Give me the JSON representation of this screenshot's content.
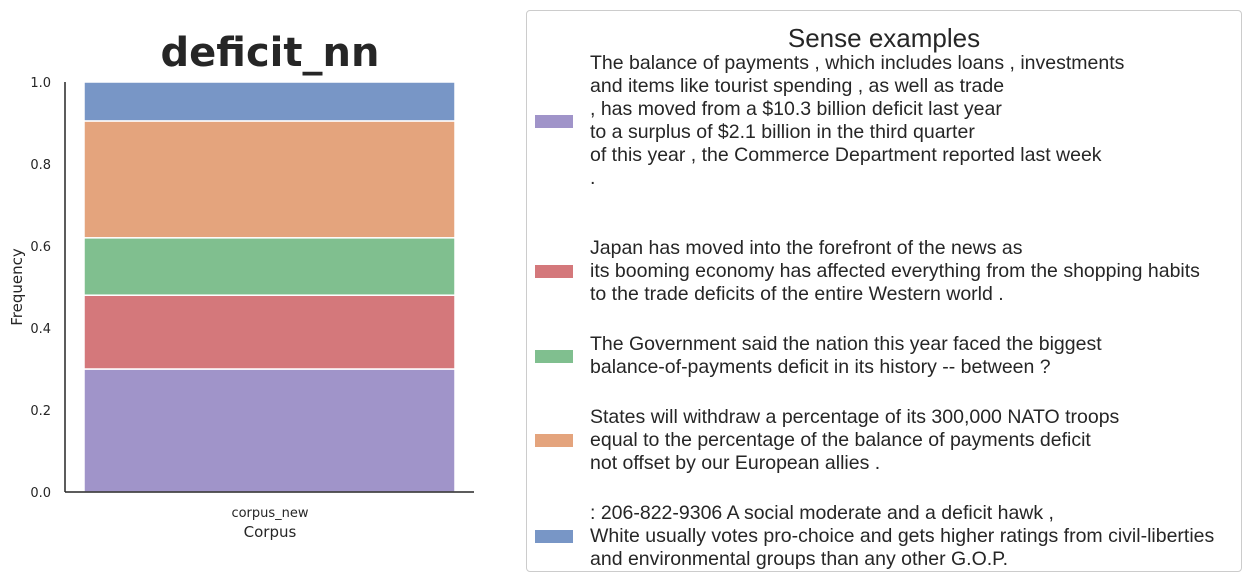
{
  "chart_data": {
    "type": "bar",
    "stacked": true,
    "title": "deficit_nn",
    "xlabel": "Corpus",
    "ylabel": "Frequency",
    "categories": [
      "corpus_new"
    ],
    "ylim": [
      0,
      1.0
    ],
    "yticks": [
      "0.0",
      "0.2",
      "0.4",
      "0.6",
      "0.8",
      "1.0"
    ],
    "series": [
      {
        "color": "#a094c9",
        "values": [
          0.3
        ]
      },
      {
        "color": "#d4787b",
        "values": [
          0.18
        ]
      },
      {
        "color": "#80bf8f",
        "values": [
          0.14
        ]
      },
      {
        "color": "#e4a47d",
        "values": [
          0.285
        ]
      },
      {
        "color": "#7896c6",
        "values": [
          0.095
        ]
      }
    ],
    "legend": {
      "title": "Sense examples",
      "placement": "right",
      "entries": [
        {
          "color": "#a094c9",
          "lines": [
            "The balance of payments , which includes loans , investments",
            "and items like tourist spending , as well as trade",
            ", has moved from a $10.3 billion deficit last year",
            "to a surplus of $2.1 billion in the third quarter",
            "of this year , the Commerce Department reported last week",
            "."
          ]
        },
        {
          "color": "#d4787b",
          "lines": [
            "Japan has moved into the forefront of the news as",
            "its booming economy has affected everything from the shopping habits",
            "to the trade deficits of the entire Western world ."
          ]
        },
        {
          "color": "#80bf8f",
          "lines": [
            "The Government said the nation this year faced the biggest",
            "balance-of-payments deficit in its history -- between ?"
          ]
        },
        {
          "color": "#e4a47d",
          "lines": [
            "States will withdraw a percentage of its 300,000 NATO troops",
            "equal to the percentage of the balance of payments deficit",
            "not offset by our European allies ."
          ]
        },
        {
          "color": "#7896c6",
          "lines": [
            ": 206-822-9306 A social moderate and a deficit hawk ,",
            "White usually votes pro-choice and gets higher ratings from civil-liberties",
            "and environmental groups than any other G.O.P."
          ]
        }
      ]
    }
  }
}
